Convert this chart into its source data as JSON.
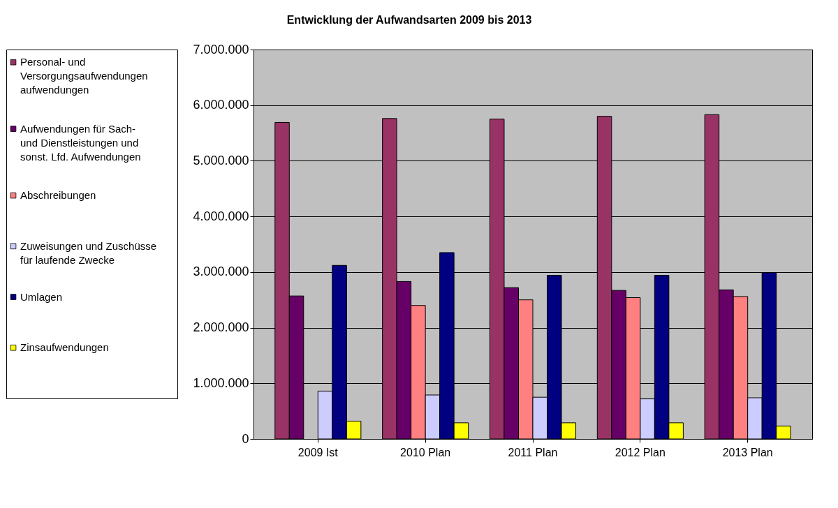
{
  "chart_data": {
    "type": "bar",
    "title": "Entwicklung der Aufwandsarten 2009 bis 2013",
    "categories": [
      "2009 Ist",
      "2010 Plan",
      "2011 Plan",
      "2012 Plan",
      "2013 Plan"
    ],
    "series": [
      {
        "name": "Personal- und Versorgungsaufwendungen aufwendungen",
        "color": "#993366",
        "values": [
          5690000,
          5760000,
          5750000,
          5800000,
          5830000
        ]
      },
      {
        "name": "Aufwendungen für Sach- und Dienstleistungen und sonst. Lfd. Aufwendungen",
        "color": "#660066",
        "values": [
          2570000,
          2830000,
          2720000,
          2670000,
          2680000
        ]
      },
      {
        "name": "Abschreibungen",
        "color": "#ff8080",
        "values": [
          null,
          2400000,
          2500000,
          2540000,
          2560000
        ]
      },
      {
        "name": "Zuweisungen und Zuschüsse für laufende Zwecke",
        "color": "#ccccff",
        "values": [
          860000,
          790000,
          750000,
          720000,
          740000
        ]
      },
      {
        "name": "Umlagen",
        "color": "#000080",
        "values": [
          3120000,
          3350000,
          2940000,
          2940000,
          2990000
        ]
      },
      {
        "name": "Zinsaufwendungen",
        "color": "#ffff00",
        "values": [
          320000,
          290000,
          290000,
          290000,
          230000
        ]
      }
    ],
    "ylim": [
      0,
      7000000
    ],
    "yticks": [
      0,
      {
        "value": 1000000,
        "label": "1.000.000"
      },
      {
        "value": 2000000,
        "label": "2.000.000"
      },
      {
        "value": 3000000,
        "label": "3.000.000"
      },
      {
        "value": 4000000,
        "label": "4.000.000"
      },
      {
        "value": 5000000,
        "label": "5.000.000"
      },
      {
        "value": 6000000,
        "label": "6.000.000"
      },
      {
        "value": 7000000,
        "label": "7.000.000"
      }
    ],
    "grid": "y",
    "legend": "left"
  }
}
